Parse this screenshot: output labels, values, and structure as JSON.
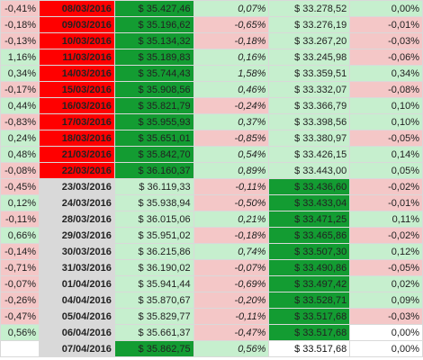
{
  "sheet": {
    "rows": [
      {
        "a": "-0,41%",
        "aC": "p",
        "date": "08/03/2016",
        "dC": "red",
        "v1": "$ 35.427,46",
        "v1C": "dg",
        "pct": "0,07%",
        "pctC": "g",
        "v2": "$ 33.278,52",
        "v2C": "g",
        "e": "0,00%",
        "eC": "g"
      },
      {
        "a": "-0,18%",
        "aC": "p",
        "date": "09/03/2016",
        "dC": "red",
        "v1": "$ 35.196,62",
        "v1C": "dg",
        "pct": "-0,65%",
        "pctC": "p",
        "v2": "$ 33.276,19",
        "v2C": "g",
        "e": "-0,01%",
        "eC": "p"
      },
      {
        "a": "-0,13%",
        "aC": "p",
        "date": "10/03/2016",
        "dC": "red",
        "v1": "$ 35.134,32",
        "v1C": "dg",
        "pct": "-0,18%",
        "pctC": "p",
        "v2": "$ 33.267,20",
        "v2C": "g",
        "e": "-0,03%",
        "eC": "p"
      },
      {
        "a": "1,16%",
        "aC": "g",
        "date": "11/03/2016",
        "dC": "red",
        "v1": "$ 35.189,83",
        "v1C": "dg",
        "pct": "0,16%",
        "pctC": "g",
        "v2": "$ 33.245,98",
        "v2C": "g",
        "e": "-0,06%",
        "eC": "p"
      },
      {
        "a": "0,34%",
        "aC": "g",
        "date": "14/03/2016",
        "dC": "red",
        "v1": "$ 35.744,43",
        "v1C": "dg",
        "pct": "1,58%",
        "pctC": "g",
        "v2": "$ 33.359,51",
        "v2C": "g",
        "e": "0,34%",
        "eC": "g"
      },
      {
        "a": "-0,17%",
        "aC": "p",
        "date": "15/03/2016",
        "dC": "red",
        "v1": "$ 35.908,56",
        "v1C": "dg",
        "pct": "0,46%",
        "pctC": "g",
        "v2": "$ 33.332,07",
        "v2C": "g",
        "e": "-0,08%",
        "eC": "p"
      },
      {
        "a": "0,44%",
        "aC": "g",
        "date": "16/03/2016",
        "dC": "red",
        "v1": "$ 35.821,79",
        "v1C": "dg",
        "pct": "-0,24%",
        "pctC": "p",
        "v2": "$ 33.366,79",
        "v2C": "g",
        "e": "0,10%",
        "eC": "g"
      },
      {
        "a": "-0,83%",
        "aC": "p",
        "date": "17/03/2016",
        "dC": "red",
        "v1": "$ 35.955,93",
        "v1C": "dg",
        "pct": "0,37%",
        "pctC": "g",
        "v2": "$ 33.398,56",
        "v2C": "g",
        "e": "0,10%",
        "eC": "g"
      },
      {
        "a": "0,24%",
        "aC": "g",
        "date": "18/03/2016",
        "dC": "red",
        "v1": "$ 35.651,01",
        "v1C": "dg",
        "pct": "-0,85%",
        "pctC": "p",
        "v2": "$ 33.380,97",
        "v2C": "g",
        "e": "-0,05%",
        "eC": "p"
      },
      {
        "a": "0,48%",
        "aC": "g",
        "date": "21/03/2016",
        "dC": "red",
        "v1": "$ 35.842,70",
        "v1C": "dg",
        "pct": "0,54%",
        "pctC": "g",
        "v2": "$ 33.426,15",
        "v2C": "g",
        "e": "0,14%",
        "eC": "g"
      },
      {
        "a": "-0,08%",
        "aC": "p",
        "date": "22/03/2016",
        "dC": "red",
        "v1": "$ 36.160,37",
        "v1C": "dg",
        "pct": "0,89%",
        "pctC": "g",
        "v2": "$ 33.443,00",
        "v2C": "g",
        "e": "0,05%",
        "eC": "g"
      },
      {
        "a": "-0,45%",
        "aC": "p",
        "date": "23/03/2016",
        "dC": "gray",
        "v1": "$ 36.119,33",
        "v1C": "g",
        "pct": "-0,11%",
        "pctC": "p",
        "v2": "$ 33.436,60",
        "v2C": "dg",
        "e": "-0,02%",
        "eC": "p"
      },
      {
        "a": "0,12%",
        "aC": "g",
        "date": "24/03/2016",
        "dC": "gray",
        "v1": "$ 35.938,94",
        "v1C": "g",
        "pct": "-0,50%",
        "pctC": "p",
        "v2": "$ 33.433,04",
        "v2C": "dg",
        "e": "-0,01%",
        "eC": "p"
      },
      {
        "a": "-0,11%",
        "aC": "p",
        "date": "28/03/2016",
        "dC": "gray",
        "v1": "$ 36.015,06",
        "v1C": "g",
        "pct": "0,21%",
        "pctC": "g",
        "v2": "$ 33.471,25",
        "v2C": "dg",
        "e": "0,11%",
        "eC": "g"
      },
      {
        "a": "0,66%",
        "aC": "g",
        "date": "29/03/2016",
        "dC": "gray",
        "v1": "$ 35.951,02",
        "v1C": "g",
        "pct": "-0,18%",
        "pctC": "p",
        "v2": "$ 33.465,86",
        "v2C": "dg",
        "e": "-0,02%",
        "eC": "p"
      },
      {
        "a": "-0,14%",
        "aC": "p",
        "date": "30/03/2016",
        "dC": "gray",
        "v1": "$ 36.215,86",
        "v1C": "g",
        "pct": "0,74%",
        "pctC": "g",
        "v2": "$ 33.507,30",
        "v2C": "dg",
        "e": "0,12%",
        "eC": "g"
      },
      {
        "a": "-0,71%",
        "aC": "p",
        "date": "31/03/2016",
        "dC": "gray",
        "v1": "$ 36.190,02",
        "v1C": "g",
        "pct": "-0,07%",
        "pctC": "p",
        "v2": "$ 33.490,86",
        "v2C": "dg",
        "e": "-0,05%",
        "eC": "p"
      },
      {
        "a": "-0,07%",
        "aC": "p",
        "date": "01/04/2016",
        "dC": "gray",
        "v1": "$ 35.941,44",
        "v1C": "g",
        "pct": "-0,69%",
        "pctC": "p",
        "v2": "$ 33.497,42",
        "v2C": "dg",
        "e": "0,02%",
        "eC": "g"
      },
      {
        "a": "-0,26%",
        "aC": "p",
        "date": "04/04/2016",
        "dC": "gray",
        "v1": "$ 35.870,67",
        "v1C": "g",
        "pct": "-0,20%",
        "pctC": "p",
        "v2": "$ 33.528,71",
        "v2C": "dg",
        "e": "0,09%",
        "eC": "g"
      },
      {
        "a": "-0,47%",
        "aC": "p",
        "date": "05/04/2016",
        "dC": "gray",
        "v1": "$ 35.829,77",
        "v1C": "g",
        "pct": "-0,11%",
        "pctC": "p",
        "v2": "$ 33.517,68",
        "v2C": "dg",
        "e": "-0,03%",
        "eC": "p"
      },
      {
        "a": "0,56%",
        "aC": "g",
        "date": "06/04/2016",
        "dC": "gray",
        "v1": "$ 35.661,37",
        "v1C": "g",
        "pct": "-0,47%",
        "pctC": "p",
        "v2": "$ 33.517,68",
        "v2C": "dg",
        "e": "0,00%",
        "eC": "w"
      },
      {
        "a": "",
        "aC": "w",
        "date": "07/04/2016",
        "dC": "gray",
        "v1": "$ 35.862,75",
        "v1C": "dg",
        "pct": "0,56%",
        "pctC": "g",
        "v2": "$ 33.517,68",
        "v2C": "w",
        "e": "0,00%",
        "eC": "w"
      }
    ]
  }
}
